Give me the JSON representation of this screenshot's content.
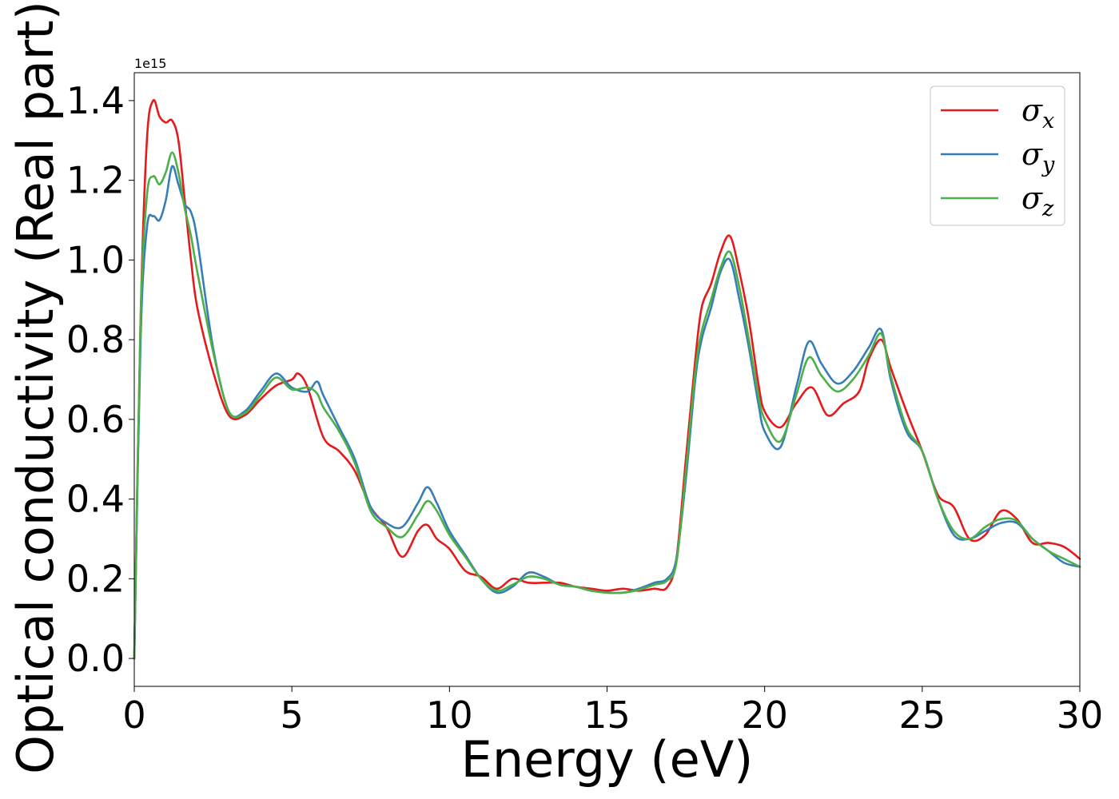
{
  "chart_data": {
    "type": "line",
    "xlabel": "Energy (eV)",
    "ylabel": "Optical conductivity (Real part)",
    "y_offset_text": "1e15",
    "xlim": [
      0,
      30
    ],
    "ylim": [
      -0.07,
      1.47
    ],
    "xticks": [
      0,
      5,
      10,
      15,
      20,
      25,
      30
    ],
    "xtick_labels": [
      "0",
      "5",
      "10",
      "15",
      "20",
      "25",
      "30"
    ],
    "yticks": [
      0.0,
      0.2,
      0.4,
      0.6,
      0.8,
      1.0,
      1.2,
      1.4
    ],
    "ytick_labels": [
      "0.0",
      "0.2",
      "0.4",
      "0.6",
      "0.8",
      "1.0",
      "1.2",
      "1.4"
    ],
    "grid": false,
    "legend_position": "top-right",
    "series": [
      {
        "name": "σx",
        "symbol": "σ",
        "subscript": "x",
        "color": "#e41a1c",
        "x": [
          0,
          0.2,
          0.4,
          0.6,
          0.8,
          1.0,
          1.2,
          1.4,
          1.6,
          1.8,
          2.0,
          2.5,
          3.0,
          3.5,
          4.0,
          4.5,
          5.0,
          5.2,
          5.5,
          6.0,
          6.5,
          7.0,
          7.5,
          8.0,
          8.5,
          9.0,
          9.3,
          9.6,
          10.0,
          10.5,
          11.0,
          11.5,
          12.0,
          12.5,
          13.0,
          13.5,
          14.0,
          14.5,
          15.0,
          15.5,
          16.0,
          16.5,
          16.9,
          17.2,
          17.5,
          17.8,
          18.0,
          18.3,
          18.6,
          18.9,
          19.2,
          19.5,
          19.8,
          20.0,
          20.5,
          21.0,
          21.5,
          22.0,
          22.5,
          23.0,
          23.3,
          23.7,
          24.0,
          24.5,
          25.0,
          25.5,
          26.0,
          26.5,
          27.0,
          27.5,
          28.0,
          28.5,
          29.0,
          29.5,
          30.0
        ],
        "y": [
          0.0,
          0.85,
          1.3,
          1.4,
          1.36,
          1.345,
          1.35,
          1.3,
          1.15,
          1.0,
          0.88,
          0.72,
          0.61,
          0.61,
          0.65,
          0.685,
          0.7,
          0.715,
          0.68,
          0.555,
          0.52,
          0.47,
          0.38,
          0.33,
          0.255,
          0.32,
          0.335,
          0.3,
          0.275,
          0.22,
          0.205,
          0.175,
          0.2,
          0.19,
          0.19,
          0.19,
          0.18,
          0.175,
          0.17,
          0.175,
          0.17,
          0.175,
          0.178,
          0.25,
          0.5,
          0.75,
          0.88,
          0.94,
          1.02,
          1.06,
          0.97,
          0.85,
          0.69,
          0.62,
          0.58,
          0.64,
          0.68,
          0.61,
          0.64,
          0.67,
          0.75,
          0.8,
          0.73,
          0.62,
          0.52,
          0.41,
          0.38,
          0.3,
          0.31,
          0.37,
          0.35,
          0.29,
          0.29,
          0.28,
          0.25
        ]
      },
      {
        "name": "σy",
        "symbol": "σ",
        "subscript": "y",
        "color": "#377eb8",
        "x": [
          0,
          0.2,
          0.4,
          0.6,
          0.8,
          1.0,
          1.2,
          1.4,
          1.6,
          1.8,
          2.0,
          2.5,
          3.0,
          3.5,
          4.0,
          4.5,
          5.0,
          5.5,
          5.8,
          6.0,
          6.5,
          7.0,
          7.5,
          8.0,
          8.5,
          9.0,
          9.3,
          9.6,
          10.0,
          10.5,
          11.0,
          11.5,
          12.0,
          12.5,
          13.0,
          13.5,
          14.0,
          14.5,
          15.0,
          15.5,
          16.0,
          16.5,
          16.9,
          17.2,
          17.5,
          17.8,
          18.0,
          18.3,
          18.6,
          18.9,
          19.2,
          19.5,
          19.8,
          20.0,
          20.5,
          21.0,
          21.4,
          21.8,
          22.3,
          22.8,
          23.3,
          23.7,
          24.0,
          24.5,
          25.0,
          25.5,
          26.0,
          26.5,
          27.0,
          27.5,
          28.0,
          28.5,
          29.0,
          29.5,
          30.0
        ],
        "y": [
          0.0,
          0.8,
          1.08,
          1.11,
          1.1,
          1.15,
          1.235,
          1.19,
          1.14,
          1.12,
          1.05,
          0.78,
          0.62,
          0.62,
          0.67,
          0.715,
          0.68,
          0.67,
          0.695,
          0.66,
          0.58,
          0.5,
          0.38,
          0.34,
          0.33,
          0.39,
          0.43,
          0.39,
          0.32,
          0.26,
          0.2,
          0.165,
          0.18,
          0.215,
          0.205,
          0.185,
          0.18,
          0.17,
          0.165,
          0.165,
          0.175,
          0.19,
          0.2,
          0.25,
          0.45,
          0.7,
          0.8,
          0.88,
          0.97,
          1.0,
          0.9,
          0.78,
          0.64,
          0.57,
          0.53,
          0.68,
          0.795,
          0.74,
          0.69,
          0.72,
          0.78,
          0.825,
          0.7,
          0.57,
          0.52,
          0.4,
          0.31,
          0.3,
          0.32,
          0.34,
          0.34,
          0.3,
          0.27,
          0.24,
          0.23
        ]
      },
      {
        "name": "σz",
        "symbol": "σ",
        "subscript": "z",
        "color": "#4daf4a",
        "x": [
          0,
          0.2,
          0.4,
          0.6,
          0.8,
          1.0,
          1.2,
          1.4,
          1.6,
          1.8,
          2.0,
          2.5,
          3.0,
          3.5,
          4.0,
          4.5,
          5.0,
          5.5,
          5.8,
          6.0,
          6.5,
          7.0,
          7.5,
          8.0,
          8.5,
          9.0,
          9.3,
          9.6,
          10.0,
          10.5,
          11.0,
          11.5,
          12.0,
          12.5,
          13.0,
          13.5,
          14.0,
          14.5,
          15.0,
          15.5,
          16.0,
          16.5,
          16.9,
          17.2,
          17.5,
          17.8,
          18.0,
          18.3,
          18.6,
          18.9,
          19.2,
          19.5,
          19.8,
          20.0,
          20.5,
          21.0,
          21.4,
          21.8,
          22.3,
          22.8,
          23.3,
          23.7,
          24.0,
          24.5,
          25.0,
          25.5,
          26.0,
          26.5,
          27.0,
          27.5,
          28.0,
          28.5,
          29.0,
          29.5,
          30.0
        ],
        "y": [
          0.0,
          0.85,
          1.16,
          1.21,
          1.19,
          1.22,
          1.27,
          1.22,
          1.13,
          1.06,
          0.97,
          0.77,
          0.62,
          0.615,
          0.66,
          0.705,
          0.675,
          0.68,
          0.665,
          0.63,
          0.57,
          0.49,
          0.37,
          0.33,
          0.305,
          0.36,
          0.395,
          0.37,
          0.31,
          0.255,
          0.2,
          0.17,
          0.185,
          0.205,
          0.2,
          0.185,
          0.18,
          0.17,
          0.165,
          0.165,
          0.172,
          0.185,
          0.195,
          0.24,
          0.47,
          0.72,
          0.82,
          0.9,
          0.98,
          1.02,
          0.93,
          0.8,
          0.66,
          0.6,
          0.545,
          0.66,
          0.755,
          0.71,
          0.67,
          0.7,
          0.76,
          0.815,
          0.71,
          0.58,
          0.52,
          0.4,
          0.32,
          0.3,
          0.33,
          0.35,
          0.345,
          0.3,
          0.27,
          0.25,
          0.23
        ]
      }
    ]
  }
}
